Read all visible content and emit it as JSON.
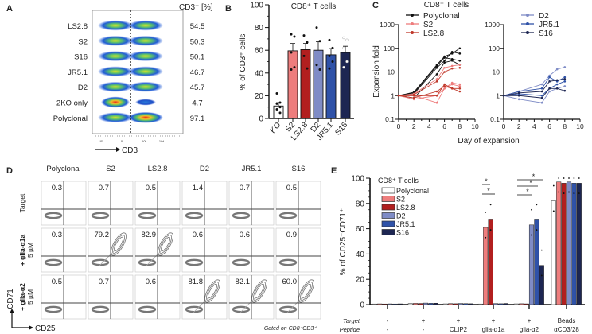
{
  "panel_labels": {
    "a": "A",
    "b": "B",
    "c": "C",
    "d": "D",
    "e": "E"
  },
  "colors": {
    "Polyclonal": "#ffffff",
    "S2": "#ee7d7d",
    "LS2.8": "#b21f1f",
    "D2": "#7f8cc6",
    "JR5.1": "#2f52a8",
    "S16": "#1d2652",
    "KO": "#ffffff",
    "poly_line": "#111111"
  },
  "chart_data": [
    {
      "panel": "A",
      "type": "scatter",
      "header": "CD3⁺ [%]",
      "xlabel": "CD3",
      "x_ticks": [
        "-10³",
        "0",
        "10³",
        "10⁴"
      ],
      "rows": [
        {
          "label": "LS2.8",
          "value": "54.5"
        },
        {
          "label": "S2",
          "value": "50.3"
        },
        {
          "label": "S16",
          "value": "50.1"
        },
        {
          "label": "JR5.1",
          "value": "46.7"
        },
        {
          "label": "D2",
          "value": "45.7"
        },
        {
          "label": "2KO only",
          "value": "4.7"
        },
        {
          "label": "Polyclonal",
          "value": "97.1"
        }
      ]
    },
    {
      "panel": "B",
      "type": "bar",
      "title": "CD8⁺ T cells",
      "ylabel": "% of CD3⁺ cells",
      "ylim": [
        0,
        100
      ],
      "y_ticks": [
        "0",
        "20",
        "40",
        "60",
        "80",
        "100"
      ],
      "categories": [
        "KO",
        "S2",
        "LS2.8",
        "D2",
        "JR5.1",
        "S16"
      ],
      "values": [
        11,
        59.5,
        60.5,
        60,
        56,
        58
      ],
      "errors": [
        3,
        6.5,
        5.5,
        7.5,
        5.5,
        5.5
      ],
      "points": [
        [
          22,
          14,
          13,
          10,
          8,
          5
        ],
        [
          74,
          72,
          58,
          45,
          43
        ],
        [
          73,
          67,
          55,
          44
        ],
        [
          80,
          68,
          47,
          43
        ],
        [
          69,
          62,
          55,
          50,
          44
        ],
        [
          71,
          69,
          62,
          50,
          45
        ]
      ]
    },
    {
      "panel": "C",
      "type": "line",
      "title": "CD8⁺ T cells",
      "ylabel": "Expansion fold",
      "xlabel": "Day of expansion",
      "yscale": "log",
      "ylim": [
        0.1,
        1000
      ],
      "xlim": [
        0,
        10
      ],
      "y_ticks": [
        "0.1",
        "1",
        "10",
        "100",
        "1000"
      ],
      "x_ticks": [
        "0",
        "2",
        "4",
        "6",
        "8",
        "10"
      ],
      "days": [
        0,
        2,
        5,
        6,
        7,
        8
      ],
      "subplots": [
        {
          "series": [
            {
              "name": "Polyclonal",
              "color": "#111111",
              "marker": "circle",
              "donors": [
                [
                  1,
                  1.4,
                  20,
                  45,
                  60,
                  100
                ],
                [
                  1,
                  1.3,
                  18,
                  40,
                  35,
                  30
                ],
                [
                  1,
                  0.8,
                  8,
                  25,
                  30,
                  20
                ],
                [
                  1,
                  1.2,
                  15,
                  30,
                  70,
                  60
                ]
              ]
            },
            {
              "name": "S2",
              "color": "#ee7d7d",
              "marker": "triangle",
              "donors": [
                [
                  1,
                  1.2,
                  5,
                  15,
                  18,
                  20
                ],
                [
                  1,
                  0.7,
                  1,
                  2,
                  3.5,
                  3
                ],
                [
                  1,
                  1,
                  0.5,
                  2,
                  3,
                  2.5
                ]
              ]
            },
            {
              "name": "LS2.8",
              "color": "#c0392b",
              "marker": "triangle-down",
              "donors": [
                [
                  1,
                  1.1,
                  4,
                  10,
                  14,
                  15
                ],
                [
                  1,
                  0.8,
                  1.5,
                  2.5,
                  2,
                  1.5
                ],
                [
                  1,
                  1,
                  1,
                  3,
                  2,
                  2
                ]
              ]
            }
          ]
        },
        {
          "series": [
            {
              "name": "D2",
              "color": "#7f8cc6",
              "marker": "circle",
              "donors": [
                [
                  1,
                  1.5,
                  3,
                  7,
                  13,
                  16
                ],
                [
                  1,
                  0.7,
                  0.5,
                  1.5,
                  2,
                  2.5
                ]
              ]
            },
            {
              "name": "JR5.1",
              "color": "#2f52a8",
              "marker": "triangle",
              "donors": [
                [
                  1,
                  1.5,
                  2,
                  6,
                  4,
                  6
                ],
                [
                  1,
                  1.2,
                  1,
                  2,
                  3,
                  4
                ]
              ]
            },
            {
              "name": "S16",
              "color": "#1d2652",
              "marker": "triangle-down",
              "donors": [
                [
                  1,
                  1,
                  0.8,
                  2,
                  2,
                  1.6
                ],
                [
                  1,
                  1.3,
                  1.5,
                  4,
                  4.5,
                  5
                ]
              ]
            }
          ]
        }
      ]
    },
    {
      "panel": "D",
      "type": "scatter",
      "columns": [
        "Polyclonal",
        "S2",
        "LS2.8",
        "D2",
        "JR5.1",
        "S16"
      ],
      "rows": [
        {
          "label": "Target",
          "label2": ""
        },
        {
          "label": "+ glia-α1a",
          "label2": "5 µM"
        },
        {
          "label": "+ glia-α2",
          "label2": "5 µM"
        }
      ],
      "values": [
        [
          "0.3",
          "0.7",
          "0.5",
          "1.4",
          "0.7",
          "0.5"
        ],
        [
          "0.3",
          "79.2",
          "82.9",
          "0.6",
          "0.6",
          "0.9"
        ],
        [
          "0.5",
          "0.7",
          "0.6",
          "81.8",
          "82.1",
          "60.0"
        ]
      ],
      "xlabel": "CD25",
      "ylabel": "CD71",
      "note": "Gated on CD8⁺CD3⁺"
    },
    {
      "panel": "E",
      "type": "bar",
      "title": "CD8⁺ T cells",
      "ylabel": "% of CD25⁺CD71⁺",
      "ylim": [
        0,
        100
      ],
      "y_ticks": [
        "0",
        "20",
        "40",
        "60",
        "80",
        "100"
      ],
      "legend": [
        "Polyclonal",
        "S2",
        "LS2.8",
        "D2",
        "JR5.1",
        "S16"
      ],
      "row_labels": {
        "target": "Target",
        "peptide": "Peptide"
      },
      "groups": [
        {
          "target": "-",
          "peptide": "-",
          "values": [
            0.5,
            0.6,
            0.5,
            0.6,
            0.5,
            0.6
          ]
        },
        {
          "target": "+",
          "peptide": "-",
          "values": [
            0.8,
            1,
            0.9,
            1.2,
            1,
            1.1
          ]
        },
        {
          "target": "+",
          "peptide": "CLIP2",
          "values": [
            0.6,
            0.8,
            0.7,
            0.9,
            0.8,
            0.7
          ]
        },
        {
          "target": "+",
          "peptide": "glia-α1a",
          "values": [
            0.5,
            61,
            67,
            0.8,
            0.7,
            0.9
          ]
        },
        {
          "target": "+",
          "peptide": "glia-α2",
          "values": [
            0.6,
            0.7,
            0.6,
            63,
            67,
            31
          ]
        },
        {
          "target": "Beads",
          "peptide": "αCD3/28",
          "values": [
            82,
            97,
            96,
            97,
            96,
            96
          ]
        }
      ],
      "significance": "*"
    }
  ]
}
